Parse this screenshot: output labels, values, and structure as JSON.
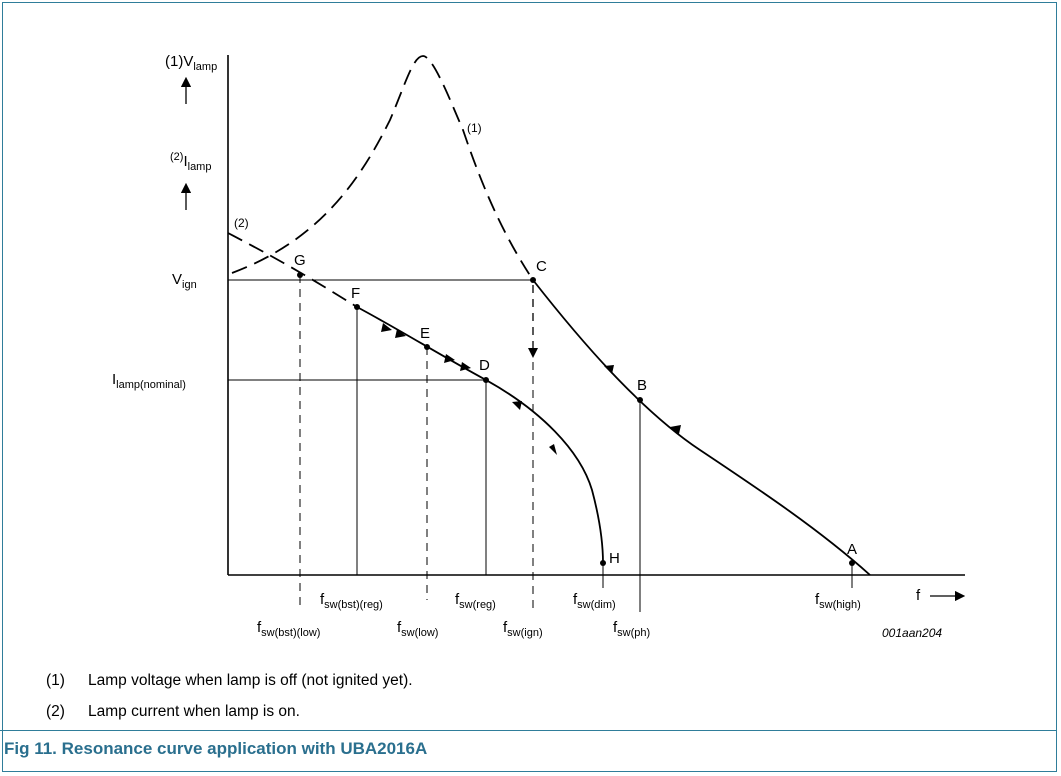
{
  "figure": {
    "caption": "Fig 11.   Resonance curve application with UBA2016A",
    "code": "001aan204"
  },
  "axes": {
    "y_label_1_prefix": "(1)",
    "y_label_1_main": "V",
    "y_label_1_sub": "lamp",
    "y_label_2_prefix": "(2)",
    "y_label_2_main": "I",
    "y_label_2_sub": "lamp",
    "x_label": "f",
    "v_ign_main": "V",
    "v_ign_sub": "ign",
    "i_nom_main": "I",
    "i_nom_sub": "lamp(nominal)"
  },
  "curves": {
    "curve1_label": "(1)",
    "curve2_label": "(2)"
  },
  "points": {
    "A": "A",
    "B": "B",
    "C": "C",
    "D": "D",
    "E": "E",
    "F": "F",
    "G": "G",
    "H": "H"
  },
  "frequencies": {
    "bst_low": "sw(bst)(low)",
    "bst_reg": "sw(bst)(reg)",
    "low": "sw(low)",
    "reg": "sw(reg)",
    "ign": "sw(ign)",
    "dim": "sw(dim)",
    "ph": "sw(ph)",
    "high": "sw(high)",
    "f": "f"
  },
  "notes": [
    {
      "num": "(1)",
      "text": "Lamp voltage when lamp is off (not ignited yet)."
    },
    {
      "num": "(2)",
      "text": "Lamp current when lamp is on."
    }
  ]
}
